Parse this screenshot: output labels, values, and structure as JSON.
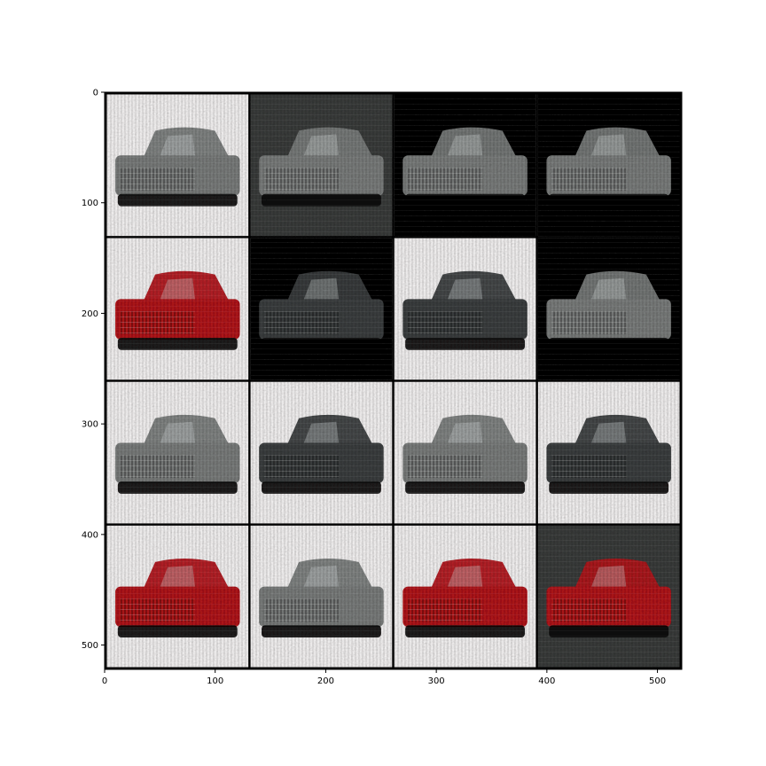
{
  "chart_data": {
    "type": "heatmap",
    "title": "",
    "xlabel": "",
    "ylabel": "",
    "xlim": [
      0,
      522
    ],
    "ylim": [
      522,
      0
    ],
    "y_axis_inverted": true,
    "x_ticks": [
      0,
      100,
      200,
      300,
      400,
      500
    ],
    "x_tick_labels": [
      "0",
      "100",
      "200",
      "300",
      "400",
      "500"
    ],
    "y_ticks": [
      0,
      100,
      200,
      300,
      400,
      500
    ],
    "y_tick_labels": [
      "0",
      "100",
      "200",
      "300",
      "400",
      "500"
    ],
    "grid": false,
    "image_grid": {
      "rows": 4,
      "cols": 4,
      "tile_size": 128,
      "padding": 2,
      "separator_color": "#000000",
      "tiles": [
        {
          "row": 0,
          "col": 0,
          "background": "white",
          "subject": "car",
          "body_color": "gray"
        },
        {
          "row": 0,
          "col": 1,
          "background": "gray",
          "subject": "car",
          "body_color": "gray"
        },
        {
          "row": 0,
          "col": 2,
          "background": "black",
          "subject": "car",
          "body_color": "gray"
        },
        {
          "row": 0,
          "col": 3,
          "background": "black",
          "subject": "car",
          "body_color": "gray"
        },
        {
          "row": 1,
          "col": 0,
          "background": "white",
          "subject": "car",
          "body_color": "red"
        },
        {
          "row": 1,
          "col": 1,
          "background": "black",
          "subject": "car",
          "body_color": "dark gray"
        },
        {
          "row": 1,
          "col": 2,
          "background": "white",
          "subject": "car",
          "body_color": "dark gray"
        },
        {
          "row": 1,
          "col": 3,
          "background": "black",
          "subject": "car",
          "body_color": "gray"
        },
        {
          "row": 2,
          "col": 0,
          "background": "white",
          "subject": "car",
          "body_color": "gray"
        },
        {
          "row": 2,
          "col": 1,
          "background": "white",
          "subject": "car",
          "body_color": "dark gray"
        },
        {
          "row": 2,
          "col": 2,
          "background": "white",
          "subject": "car",
          "body_color": "gray"
        },
        {
          "row": 2,
          "col": 3,
          "background": "white",
          "subject": "car",
          "body_color": "dark gray"
        },
        {
          "row": 3,
          "col": 0,
          "background": "white",
          "subject": "car",
          "body_color": "red"
        },
        {
          "row": 3,
          "col": 1,
          "background": "white",
          "subject": "car",
          "body_color": "gray"
        },
        {
          "row": 3,
          "col": 2,
          "background": "white",
          "subject": "car",
          "body_color": "red"
        },
        {
          "row": 3,
          "col": 3,
          "background": "gray",
          "subject": "car",
          "body_color": "red"
        }
      ]
    }
  }
}
